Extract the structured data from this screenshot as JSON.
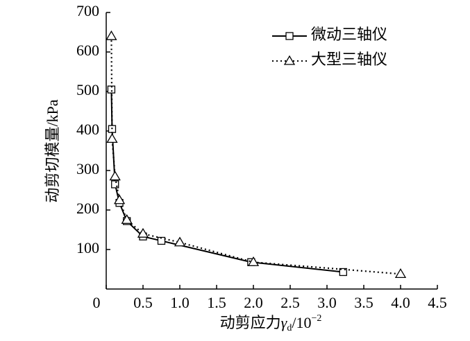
{
  "chart_data": {
    "type": "line",
    "y_label": "动剪切模量/kPa",
    "x_label": [
      "动剪应力",
      "γ",
      "d",
      "/10",
      "−2"
    ],
    "xlim": [
      0,
      4.5
    ],
    "xticks": [
      0,
      {
        "value": 0.5,
        "label": "0.5"
      },
      {
        "value": 1,
        "label": "1.0"
      },
      1.5,
      {
        "value": 2,
        "label": "2.0"
      },
      2.5,
      {
        "value": 3,
        "label": "3.0"
      },
      3.5,
      {
        "value": 4,
        "label": "4.0"
      },
      4.5
    ],
    "ylim": [
      0,
      700
    ],
    "yticks": [
      100,
      200,
      300,
      400,
      500,
      600,
      700
    ],
    "legend": "upper right",
    "series": [
      {
        "name": "微动三轴仪",
        "color": "#000000",
        "marker": "square",
        "linestyle": "solid",
        "x": [
          0.07,
          0.08,
          0.12,
          0.18,
          0.28,
          0.5,
          0.75,
          1.97,
          3.22
        ],
        "values": [
          505,
          405,
          265,
          218,
          172,
          133,
          122,
          68,
          43
        ]
      },
      {
        "name": "大型三轴仪",
        "color": "#000000",
        "marker": "triangle",
        "linestyle": "dotted",
        "x": [
          0.07,
          0.08,
          0.12,
          0.18,
          0.28,
          0.5,
          1.0,
          2.0,
          4.0
        ],
        "values": [
          640,
          380,
          285,
          225,
          175,
          140,
          118,
          68,
          38
        ]
      }
    ]
  }
}
